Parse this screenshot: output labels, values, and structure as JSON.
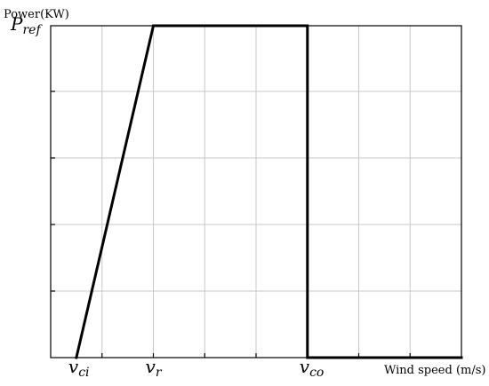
{
  "chart_data": {
    "type": "line",
    "ylabel": "Power(KW)",
    "xlabel": "Wind speed (m/s)",
    "xlim": [
      0,
      8
    ],
    "ylim": [
      0,
      1
    ],
    "x_ticks": [
      {
        "main": "v",
        "sub": "ci",
        "value": 0.5
      },
      {
        "main": "v",
        "sub": "r",
        "value": 2
      },
      {
        "main": "v",
        "sub": "co",
        "value": 5
      }
    ],
    "y_ticks": [
      {
        "main": "P",
        "sub": "ref",
        "value": 1.0
      }
    ],
    "grid": true,
    "series": [
      {
        "x": [
          0.5,
          2,
          5,
          5,
          8
        ],
        "y": [
          0,
          1,
          1,
          0,
          0
        ]
      }
    ]
  }
}
